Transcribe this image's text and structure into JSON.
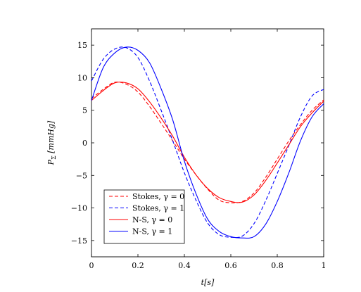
{
  "chart_data": {
    "type": "line",
    "xlabel": "t[s]",
    "ylabel": "P_Σ [mmHg]",
    "ylabel_main": "P",
    "ylabel_sub": "Σ",
    "ylabel_unit": " [mmHg]",
    "xlim": [
      0,
      1
    ],
    "ylim": [
      -17.5,
      17.5
    ],
    "xticks": [
      0,
      0.2,
      0.4,
      0.6,
      0.8,
      1
    ],
    "xtick_labels": [
      "0",
      "0.2",
      "0.4",
      "0.6",
      "0.8",
      "1"
    ],
    "yticks": [
      -15,
      -10,
      -5,
      0,
      5,
      10,
      15
    ],
    "ytick_labels": [
      "−15",
      "−10",
      "−5",
      "0",
      "5",
      "10",
      "15"
    ],
    "grid": false,
    "legend_position": "bottom-left",
    "x": [
      0,
      0.05,
      0.1,
      0.15,
      0.2,
      0.25,
      0.3,
      0.35,
      0.4,
      0.45,
      0.5,
      0.55,
      0.6,
      0.65,
      0.7,
      0.75,
      0.8,
      0.85,
      0.9,
      0.95,
      1.0
    ],
    "series": [
      {
        "name": "Stokes, γ = 0",
        "color": "#ff0000",
        "dash": "dashed",
        "values": [
          6.8,
          8.2,
          9.3,
          9.0,
          7.8,
          5.6,
          3.0,
          0.3,
          -2.5,
          -4.9,
          -7.1,
          -8.8,
          -9.2,
          -9.0,
          -7.7,
          -5.3,
          -2.5,
          0.3,
          2.8,
          5.0,
          6.6
        ]
      },
      {
        "name": "Stokes, γ = 1",
        "color": "#0000ff",
        "dash": "dashed",
        "values": [
          9.5,
          12.8,
          14.4,
          14.6,
          13.1,
          9.5,
          5.0,
          0.3,
          -4.6,
          -8.8,
          -12.3,
          -14.1,
          -14.5,
          -14.3,
          -12.4,
          -8.9,
          -4.7,
          -0.4,
          4.0,
          7.2,
          8.2
        ]
      },
      {
        "name": "N-S, γ = 0",
        "color": "#ff0000",
        "dash": "solid",
        "values": [
          6.5,
          8.0,
          9.2,
          9.2,
          8.3,
          6.3,
          3.8,
          1.0,
          -2.2,
          -4.9,
          -7.0,
          -8.4,
          -9.0,
          -9.1,
          -8.0,
          -5.8,
          -3.1,
          -0.3,
          2.5,
          4.6,
          6.4
        ]
      },
      {
        "name": "N-S, γ = 1",
        "color": "#0000ff",
        "dash": "solid",
        "values": [
          6.5,
          11.5,
          13.8,
          14.7,
          14.2,
          12.3,
          8.3,
          3.5,
          -2.8,
          -7.8,
          -11.7,
          -13.6,
          -14.4,
          -14.6,
          -14.4,
          -12.5,
          -9.0,
          -4.6,
          0.3,
          4.0,
          6.0
        ]
      }
    ]
  }
}
